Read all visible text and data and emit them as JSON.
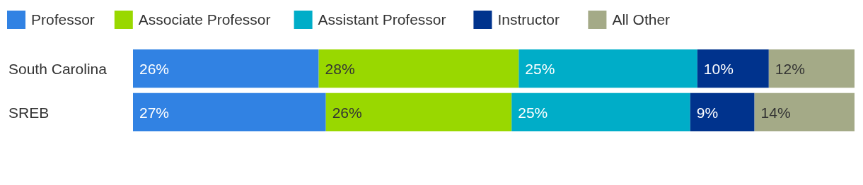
{
  "chart_data": {
    "type": "bar",
    "orientation": "horizontal",
    "stacked": true,
    "categories": [
      "South Carolina",
      "SREB"
    ],
    "series": [
      {
        "name": "Professor",
        "color": "#3182e3",
        "values": [
          26,
          27
        ],
        "value_labels": [
          "26%",
          "27%"
        ]
      },
      {
        "name": "Associate Professor",
        "color": "#99d800",
        "values": [
          28,
          26
        ],
        "value_labels": [
          "28%",
          "26%"
        ]
      },
      {
        "name": "Assistant Professor",
        "color": "#00adc8",
        "values": [
          25,
          25
        ],
        "value_labels": [
          "25%",
          "25%"
        ]
      },
      {
        "name": "Instructor",
        "color": "#00338d",
        "values": [
          10,
          9
        ],
        "value_labels": [
          "10%",
          "9%"
        ]
      },
      {
        "name": "All Other",
        "color": "#a4aa87",
        "values": [
          12,
          14
        ],
        "value_labels": [
          "12%",
          "14%"
        ]
      }
    ],
    "legend": "top left"
  }
}
